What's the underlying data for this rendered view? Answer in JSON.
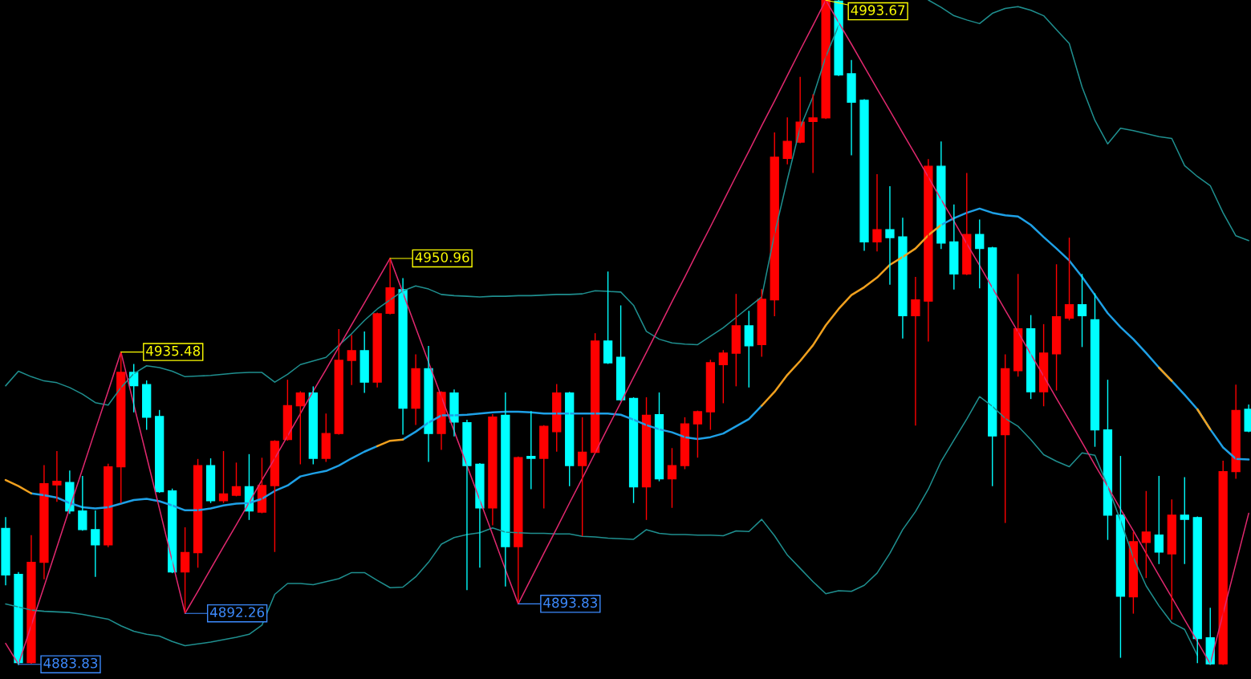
{
  "chart_data": {
    "type": "candlestick",
    "categories": [
      null,
      null,
      null,
      null,
      null,
      null,
      null,
      null,
      null,
      null,
      null,
      null,
      null,
      null,
      null,
      null,
      null,
      null,
      null,
      null,
      null,
      null,
      null,
      null,
      null,
      null,
      null,
      null,
      null,
      null,
      null,
      null,
      null,
      null,
      null,
      null,
      null,
      null,
      null,
      null,
      null,
      null,
      null,
      null,
      null,
      null,
      null,
      null,
      null,
      null,
      null,
      null,
      null,
      null,
      null,
      null,
      null,
      null,
      null,
      null,
      null,
      null,
      null,
      null,
      null,
      null,
      null,
      null,
      null,
      null,
      null,
      null,
      null,
      null,
      null,
      null,
      null,
      null,
      null,
      null,
      null,
      null,
      null,
      null,
      null,
      null,
      null,
      null,
      null,
      null,
      null,
      null,
      null,
      null,
      null,
      null,
      null,
      null
    ],
    "ohlc": [
      [
        4906.3,
        4908.1,
        4897.0,
        4898.6
      ],
      [
        4898.7,
        4899.0,
        4883.83,
        4884.1
      ],
      [
        4884.1,
        4905.1,
        4884.0,
        4900.7
      ],
      [
        4900.7,
        4916.7,
        4898.0,
        4913.7
      ],
      [
        4913.5,
        4919.0,
        4910.8,
        4914.1
      ],
      [
        4913.9,
        4915.8,
        4908.8,
        4909.2
      ],
      [
        4909.2,
        4914.9,
        4906.0,
        4906.1
      ],
      [
        4906.1,
        4909.2,
        4898.4,
        4903.6
      ],
      [
        4903.6,
        4916.9,
        4903.3,
        4916.5
      ],
      [
        4916.5,
        4935.48,
        4910.6,
        4932.1
      ],
      [
        4932.1,
        4933.4,
        4925.6,
        4929.9
      ],
      [
        4930.1,
        4930.7,
        4922.7,
        4924.7
      ],
      [
        4924.8,
        4925.8,
        4912.3,
        4912.4
      ],
      [
        4912.5,
        4912.8,
        4899.0,
        4899.1
      ],
      [
        4899.1,
        4906.4,
        4892.26,
        4902.3
      ],
      [
        4902.3,
        4917.7,
        4899.9,
        4916.7
      ],
      [
        4916.7,
        4917.8,
        4910.6,
        4910.9
      ],
      [
        4910.9,
        4919.0,
        4910.6,
        4912.0
      ],
      [
        4911.8,
        4917.1,
        4911.7,
        4913.2
      ],
      [
        4913.2,
        4918.5,
        4907.8,
        4909.2
      ],
      [
        4909.0,
        4917.9,
        4908.9,
        4913.4
      ],
      [
        4913.4,
        4920.8,
        4902.5,
        4920.7
      ],
      [
        4921.0,
        4930.8,
        4920.9,
        4926.6
      ],
      [
        4926.6,
        4928.9,
        4917.0,
        4928.7
      ],
      [
        4928.7,
        4929.7,
        4917.0,
        4917.9
      ],
      [
        4917.9,
        4925.2,
        4917.4,
        4922.0
      ],
      [
        4922.0,
        4939.2,
        4921.9,
        4934.1
      ],
      [
        4934.1,
        4938.2,
        4930.1,
        4935.7
      ],
      [
        4935.7,
        4938.8,
        4928.8,
        4930.5
      ],
      [
        4930.5,
        4941.9,
        4929.7,
        4941.8
      ],
      [
        4941.9,
        4950.96,
        4941.8,
        4946.1
      ],
      [
        4945.8,
        4947.6,
        4921.9,
        4926.2
      ],
      [
        4926.2,
        4935.0,
        4923.5,
        4932.7
      ],
      [
        4932.7,
        4936.4,
        4917.4,
        4922.0
      ],
      [
        4922.0,
        4928.9,
        4919.4,
        4928.8
      ],
      [
        4928.7,
        4929.2,
        4921.6,
        4923.9
      ],
      [
        4923.8,
        4924.2,
        4896.2,
        4916.7
      ],
      [
        4916.9,
        4917.0,
        4899.9,
        4909.7
      ],
      [
        4909.7,
        4925.1,
        4906.9,
        4924.7
      ],
      [
        4925.0,
        4928.7,
        4896.8,
        4903.3
      ],
      [
        4903.3,
        4918.1,
        4893.83,
        4918.0
      ],
      [
        4918.2,
        4925.6,
        4912.9,
        4917.9
      ],
      [
        4917.9,
        4923.3,
        4909.7,
        4923.2
      ],
      [
        4922.3,
        4930.1,
        4919.1,
        4928.7
      ],
      [
        4928.7,
        4928.8,
        4913.4,
        4916.7
      ],
      [
        4916.7,
        4924.6,
        4905.1,
        4918.9
      ],
      [
        4918.9,
        4938.5,
        4918.8,
        4937.3
      ],
      [
        4937.3,
        4948.7,
        4933.6,
        4933.7
      ],
      [
        4934.6,
        4943.1,
        4927.5,
        4927.6
      ],
      [
        4927.8,
        4927.9,
        4910.6,
        4913.2
      ],
      [
        4913.2,
        4927.9,
        4907.8,
        4925.0
      ],
      [
        4925.1,
        4928.7,
        4914.2,
        4914.5
      ],
      [
        4914.5,
        4919.5,
        4909.8,
        4916.7
      ],
      [
        4916.7,
        4924.6,
        4916.2,
        4923.6
      ],
      [
        4923.6,
        4925.7,
        4918.1,
        4925.6
      ],
      [
        4925.6,
        4934.1,
        4922.7,
        4933.7
      ],
      [
        4933.4,
        4935.7,
        4927.1,
        4935.3
      ],
      [
        4935.3,
        4945.0,
        4929.9,
        4939.8
      ],
      [
        4939.8,
        4942.2,
        4929.7,
        4936.5
      ],
      [
        4936.7,
        4945.8,
        4934.8,
        4944.2
      ],
      [
        4944.1,
        4971.7,
        4941.5,
        4967.7
      ],
      [
        4967.5,
        4974.2,
        4966.6,
        4970.3
      ],
      [
        4970.2,
        4980.9,
        4970.1,
        4973.5
      ],
      [
        4973.6,
        4978.0,
        4965.2,
        4974.2
      ],
      [
        4974.2,
        4993.67,
        4974.1,
        4993.6
      ],
      [
        4993.5,
        4993.6,
        4981.2,
        4981.3
      ],
      [
        4981.5,
        4983.7,
        4968.1,
        4976.8
      ],
      [
        4977.1,
        4977.2,
        4952.3,
        4953.7
      ],
      [
        4953.7,
        4964.8,
        4952.2,
        4955.7
      ],
      [
        4955.7,
        4962.8,
        4946.7,
        4954.4
      ],
      [
        4954.5,
        4957.6,
        4937.8,
        4941.5
      ],
      [
        4941.5,
        4947.8,
        4923.4,
        4944.1
      ],
      [
        4943.9,
        4967.3,
        4937.3,
        4966.2
      ],
      [
        4966.2,
        4970.2,
        4952.6,
        4953.5
      ],
      [
        4953.7,
        4959.8,
        4945.9,
        4948.4
      ],
      [
        4948.4,
        4965.0,
        4948.3,
        4954.9
      ],
      [
        4954.9,
        4957.3,
        4946.1,
        4952.6
      ],
      [
        4952.7,
        4952.8,
        4913.4,
        4921.6
      ],
      [
        4921.8,
        4935.0,
        4907.3,
        4932.7
      ],
      [
        4932.4,
        4948.3,
        4931.5,
        4939.3
      ],
      [
        4939.3,
        4941.5,
        4927.8,
        4928.9
      ],
      [
        4928.9,
        4940.0,
        4926.6,
        4935.3
      ],
      [
        4935.2,
        4949.9,
        4929.2,
        4941.3
      ],
      [
        4941.1,
        4954.3,
        4940.8,
        4943.3
      ],
      [
        4943.3,
        4948.3,
        4936.4,
        4941.5
      ],
      [
        4940.8,
        4945.1,
        4919.9,
        4922.6
      ],
      [
        4922.6,
        4930.8,
        4904.5,
        4908.5
      ],
      [
        4908.5,
        4918.2,
        4885.0,
        4895.1
      ],
      [
        4895.0,
        4905.6,
        4892.3,
        4904.1
      ],
      [
        4904.0,
        4912.4,
        4898.2,
        4905.7
      ],
      [
        4905.2,
        4914.9,
        4900.5,
        4902.4
      ],
      [
        4902.1,
        4911.0,
        4891.3,
        4908.5
      ],
      [
        4908.5,
        4914.7,
        4900.5,
        4907.8
      ],
      [
        4908.1,
        4908.2,
        4884.1,
        4888.1
      ],
      [
        4888.2,
        4893.1,
        4883.83,
        4883.9
      ],
      [
        4883.9,
        4917.4,
        4883.83,
        4915.7
      ],
      [
        4915.7,
        4930.0,
        4914.6,
        4925.8
      ],
      [
        4926.0,
        4926.7,
        4922.3,
        4922.4
      ]
    ],
    "colors": [
      "#00ffff",
      "#00ffff",
      "#ff0000",
      "#ff0000",
      "#ff0000",
      "#00ffff",
      "#00ffff",
      "#00ffff",
      "#ff0000",
      "#ff0000",
      "#00ffff",
      "#00ffff",
      "#00ffff",
      "#00ffff",
      "#ff0000",
      "#ff0000",
      "#00ffff",
      "#ff0000",
      "#ff0000",
      "#00ffff",
      "#ff0000",
      "#ff0000",
      "#ff0000",
      "#ff0000",
      "#00ffff",
      "#ff0000",
      "#ff0000",
      "#ff0000",
      "#00ffff",
      "#ff0000",
      "#ff0000",
      "#00ffff",
      "#ff0000",
      "#00ffff",
      "#ff0000",
      "#00ffff",
      "#00ffff",
      "#00ffff",
      "#ff0000",
      "#00ffff",
      "#ff0000",
      "#00ffff",
      "#ff0000",
      "#ff0000",
      "#00ffff",
      "#ff0000",
      "#ff0000",
      "#00ffff",
      "#00ffff",
      "#00ffff",
      "#ff0000",
      "#00ffff",
      "#ff0000",
      "#ff0000",
      "#ff0000",
      "#ff0000",
      "#ff0000",
      "#ff0000",
      "#00ffff",
      "#ff0000",
      "#ff0000",
      "#ff0000",
      "#ff0000",
      "#ff0000",
      "#ff0000",
      "#00ffff",
      "#00ffff",
      "#00ffff",
      "#ff0000",
      "#00ffff",
      "#00ffff",
      "#ff0000",
      "#ff0000",
      "#00ffff",
      "#00ffff",
      "#ff0000",
      "#00ffff",
      "#00ffff",
      "#ff0000",
      "#ff0000",
      "#00ffff",
      "#ff0000",
      "#ff0000",
      "#ff0000",
      "#00ffff",
      "#00ffff",
      "#00ffff",
      "#00ffff",
      "#ff0000",
      "#ff0000",
      "#00ffff",
      "#ff0000",
      "#00ffff",
      "#00ffff",
      "#00ffff",
      "#ff0000",
      "#ff0000",
      "#00ffff"
    ],
    "ylim": [
      4881.4,
      4993.7
    ],
    "series": [
      {
        "type": "line",
        "color": "#1f8f8f",
        "values": [
          4929.9,
          4932.3,
          4931.4,
          4930.7,
          4930.4,
          4929.6,
          4928.5,
          4927.1,
          4926.7,
          4929.6,
          4931.9,
          4933.2,
          4932.9,
          4932.3,
          4931.4,
          4931.5,
          4931.6,
          4931.8,
          4932.0,
          4932.1,
          4932.1,
          4930.5,
          4931.8,
          4933.4,
          4934.0,
          4934.6,
          4936.6,
          4938.5,
          4940.7,
          4942.6,
          4944.1,
          4945.6,
          4946.4,
          4945.9,
          4945.0,
          4944.8,
          4944.7,
          4944.6,
          4944.7,
          4944.7,
          4944.8,
          4944.8,
          4944.9,
          4945.0,
          4945.0,
          4945.1,
          4945.6,
          4945.5,
          4945.4,
          4943.2,
          4938.9,
          4937.6,
          4937.0,
          4936.8,
          4936.7,
          4938.1,
          4939.5,
          4941.2,
          4942.9,
          4944.6,
          4955.0,
          4964.0,
          4972.6,
          4977.7,
          4984.3,
          4989.5,
          null,
          null,
          null,
          null,
          null,
          null,
          4993.7,
          4992.5,
          4991.1,
          4990.4,
          4989.8,
          4991.5,
          4992.3,
          4992.6,
          4992.0,
          4991.1,
          4988.8,
          4986.5,
          4979.3,
          4973.8,
          4969.9,
          4972.5,
          4972.1,
          4971.6,
          4971.1,
          4970.8,
          4966.3,
          4964.5,
          4963.0,
          4958.5,
          4954.7,
          4953.9
        ]
      },
      {
        "type": "line",
        "color": "#1f8f8f",
        "values": [
          4893.8,
          4893.3,
          4892.8,
          4892.6,
          4892.5,
          4892.4,
          4892.1,
          4891.7,
          4891.3,
          4890.2,
          4889.3,
          4888.8,
          4888.5,
          4887.6,
          4886.9,
          4887.2,
          4887.5,
          4887.9,
          4888.3,
          4888.8,
          4890.3,
          4895.4,
          4897.2,
          4897.2,
          4897.0,
          4897.5,
          4898.0,
          4899.0,
          4899.0,
          4897.7,
          4896.5,
          4896.6,
          4898.3,
          4900.7,
          4903.7,
          4904.8,
          4905.3,
          4905.6,
          4906.4,
          4905.7,
          4905.6,
          4905.5,
          4905.5,
          4905.4,
          4905.4,
          4905.0,
          4904.9,
          4904.7,
          4904.6,
          4904.5,
          4906.1,
          4905.5,
          4905.3,
          4905.3,
          4905.2,
          4905.2,
          4905.1,
          4905.9,
          4905.8,
          4907.8,
          4905.1,
          4901.9,
          4899.7,
          4897.5,
          4895.5,
          4896.0,
          4895.9,
          4896.9,
          4898.9,
          4902.2,
          4906.1,
          4909.1,
          4912.8,
          4917.4,
          4920.9,
          4924.4,
          4928.1,
          4926.5,
          4924.5,
          4923.2,
          4921.0,
          4918.5,
          4917.4,
          4916.5,
          4918.8,
          4918.4,
          4913.3,
          4907.6,
          4901.5,
          4896.8,
          4893.5,
          4890.7,
          4889.6,
          4885.3,
          null,
          null,
          null,
          null
        ]
      },
      {
        "type": "line",
        "color": "#1ea0e6",
        "values": [
          null,
          null,
          4912.1,
          4911.8,
          4911.4,
          4910.5,
          4909.8,
          4909.6,
          4909.8,
          4910.4,
          4911.0,
          4911.2,
          4910.8,
          4910.1,
          4909.3,
          4909.3,
          4909.6,
          4910.1,
          4910.4,
          4910.5,
          4911.2,
          4912.5,
          4913.4,
          4914.9,
          4915.4,
          4915.8,
          4916.7,
          4917.9,
          4919.0,
          4919.9,
          null,
          4921.0,
          4922.3,
          4923.8,
          4925.0,
          4925.0,
          4925.1,
          4925.3,
          4925.5,
          4925.6,
          4925.6,
          4925.5,
          4925.3,
          4925.3,
          4925.3,
          4925.3,
          4925.3,
          4925.3,
          4925.1,
          4924.3,
          4923.4,
          4922.7,
          4922.2,
          4921.4,
          4921.1,
          4921.4,
          4922.0,
          4923.2,
          4924.4,
          4926.6,
          null,
          null,
          null,
          null,
          null,
          null,
          null,
          null,
          null,
          null,
          null,
          null,
          null,
          4956.5,
          4957.6,
          4958.5,
          4959.2,
          4958.5,
          4958.1,
          4957.9,
          4956.5,
          4954.5,
          4952.6,
          4950.6,
          4947.9,
          4944.9,
          4941.9,
          4939.6,
          4937.6,
          4935.3,
          4932.9,
          4930.7,
          4928.4,
          4926.0,
          4922.7,
          4919.7,
          4917.8,
          4917.7
        ]
      },
      {
        "type": "line",
        "color": "#f0a01e",
        "values": [
          4914.3,
          4913.3,
          4912.1,
          null,
          null,
          null,
          null,
          null,
          null,
          null,
          null,
          null,
          null,
          null,
          null,
          null,
          null,
          null,
          null,
          null,
          null,
          null,
          null,
          null,
          null,
          null,
          null,
          null,
          null,
          4919.9,
          4920.8,
          4921.0,
          null,
          null,
          null,
          null,
          null,
          null,
          null,
          null,
          null,
          null,
          null,
          null,
          null,
          null,
          null,
          null,
          null,
          null,
          null,
          null,
          null,
          null,
          null,
          null,
          null,
          null,
          null,
          4926.6,
          4928.9,
          4931.7,
          4934.0,
          4936.6,
          4939.9,
          4942.6,
          4944.9,
          4946.2,
          4947.8,
          4949.9,
          4951.2,
          4952.6,
          4954.8,
          4956.5,
          null,
          null,
          null,
          null,
          null,
          null,
          null,
          null,
          null,
          null,
          null,
          null,
          null,
          null,
          null,
          null,
          4932.9,
          4930.7,
          null,
          4926.0,
          4922.7,
          null,
          null,
          null
        ]
      },
      {
        "type": "line",
        "color": "#e0286e",
        "values": [
          4887.3,
          4883.83,
          4890.3,
          4896.7,
          4903.2,
          4909.7,
          4916.1,
          4922.6,
          4929.0,
          4935.48,
          4926.8,
          4918.2,
          4909.6,
          4900.9,
          4892.26,
          4895.9,
          4899.6,
          4903.3,
          4906.9,
          4910.6,
          4914.3,
          4917.9,
          4921.6,
          4925.3,
          4929.0,
          4932.6,
          4936.3,
          4940.0,
          4943.6,
          4947.3,
          4950.96,
          4945.3,
          4939.5,
          4933.8,
          4928.1,
          4922.4,
          4916.7,
          4911.0,
          4905.3,
          4899.5,
          4893.83,
          4898.0,
          4902.2,
          4906.3,
          4910.5,
          4914.6,
          4918.8,
          4923.0,
          4927.1,
          4931.3,
          4935.4,
          4939.6,
          4943.8,
          4947.9,
          4952.1,
          4956.2,
          4960.4,
          4964.6,
          4968.7,
          4972.9,
          4977.0,
          4981.2,
          4985.4,
          4989.5,
          4993.67,
          4990.0,
          4986.4,
          4982.7,
          4979.0,
          4975.4,
          4971.7,
          4968.1,
          4964.4,
          4960.7,
          4957.1,
          4953.4,
          4949.8,
          4946.1,
          4942.4,
          4938.8,
          4935.1,
          4931.5,
          4927.8,
          4924.2,
          4920.5,
          4916.8,
          4913.2,
          4909.5,
          4905.9,
          4902.2,
          4898.5,
          4894.9,
          4891.2,
          4887.6,
          4883.9,
          4892.2,
          4900.5,
          4908.8
        ],
        "value_labels": [
          null,
          "4883.83",
          null,
          null,
          null,
          null,
          null,
          null,
          null,
          "4935.48",
          null,
          null,
          null,
          null,
          "4892.26",
          null,
          null,
          null,
          null,
          null,
          null,
          null,
          null,
          null,
          null,
          null,
          null,
          null,
          null,
          null,
          "4950.96",
          null,
          null,
          null,
          null,
          null,
          null,
          null,
          null,
          null,
          "4893.83",
          null,
          null,
          null,
          null,
          null,
          null,
          null,
          null,
          null,
          null,
          null,
          null,
          null,
          null,
          null,
          null,
          null,
          null,
          null,
          null,
          null,
          null,
          null,
          "4993.67",
          null,
          null,
          null,
          null,
          null,
          null,
          null,
          null,
          null,
          null,
          null,
          null,
          null,
          null,
          null,
          null,
          null,
          null,
          null,
          null,
          null,
          null,
          null,
          null,
          null,
          null,
          null,
          null,
          null,
          null,
          null,
          null,
          null
        ],
        "colors": [
          null,
          "#3d8bff",
          null,
          null,
          null,
          null,
          null,
          null,
          null,
          "#ffff00",
          null,
          null,
          null,
          null,
          "#3d8bff",
          null,
          null,
          null,
          null,
          null,
          null,
          null,
          null,
          null,
          null,
          null,
          null,
          null,
          null,
          null,
          "#ffff00",
          null,
          null,
          null,
          null,
          null,
          null,
          null,
          null,
          null,
          "#3d8bff",
          null,
          null,
          null,
          null,
          null,
          null,
          null,
          null,
          null,
          null,
          null,
          null,
          null,
          null,
          null,
          null,
          null,
          null,
          null,
          null,
          null,
          null,
          null,
          "#ffff00",
          null,
          null,
          null,
          null,
          null,
          null,
          null,
          null,
          null,
          null,
          null,
          null,
          null,
          null,
          null,
          null,
          null,
          null,
          null,
          null,
          null,
          null,
          null,
          null,
          null,
          null,
          null,
          null,
          null,
          null,
          null,
          null,
          null
        ]
      }
    ]
  }
}
